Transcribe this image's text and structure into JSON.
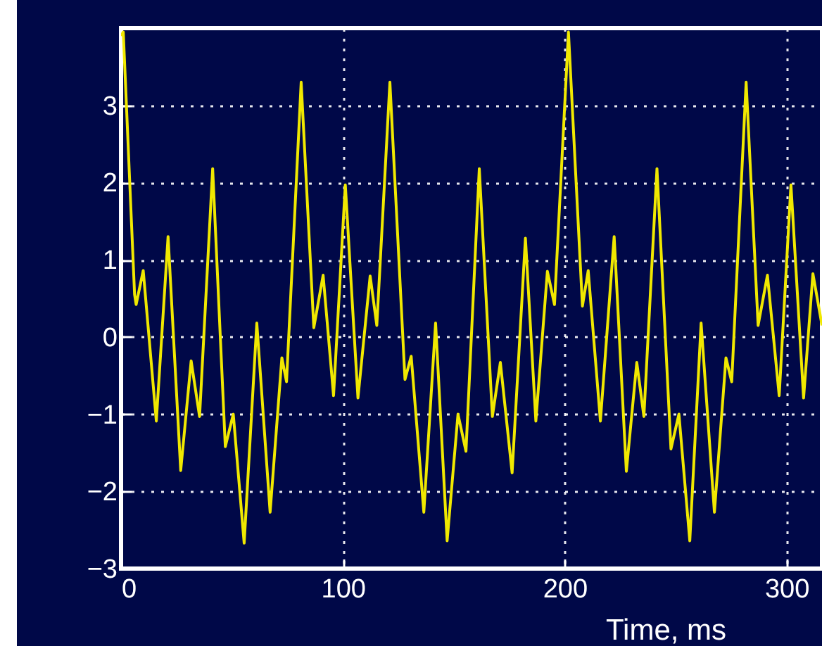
{
  "chart_data": {
    "type": "line",
    "xlabel": "Time, ms",
    "x": [
      0,
      1.0,
      6.1,
      6.8,
      10,
      15.9,
      21.2,
      26.9,
      31.6,
      35.4,
      41.3,
      47,
      50.6,
      55.5,
      61.2,
      67.2,
      72.5,
      74.6,
      81.2,
      86.9,
      91.1,
      95.8,
      101.1,
      106.8,
      112.3,
      115.3,
      121.2,
      128,
      130.8,
      136.5,
      141.8,
      147,
      151.9,
      155.5,
      161.5,
      167.4,
      171,
      176.3,
      182.3,
      187,
      192.2,
      195.4,
      201.7,
      208,
      210.6,
      216.1,
      222.3,
      227.8,
      232.5,
      235.7,
      241.6,
      247.9,
      251.5,
      256.4,
      261.5,
      267.5,
      272.7,
      275.3,
      281.8,
      287.2,
      291.4,
      296.7,
      302,
      307.7,
      311.9,
      316
    ],
    "series": [
      {
        "color": "#f0e800",
        "values": [
          3.9,
          3.95,
          0.55,
          0.42,
          0.86,
          -1.09,
          1.3,
          -1.73,
          -0.31,
          -1.03,
          2.18,
          -1.42,
          -1.0,
          -2.67,
          0.18,
          -2.27,
          -0.27,
          -0.58,
          3.3,
          0.12,
          0.8,
          -0.76,
          1.97,
          -0.79,
          0.79,
          0.15,
          3.3,
          -0.55,
          -0.25,
          -2.27,
          0.18,
          -2.64,
          -1.0,
          -1.48,
          2.18,
          -1.03,
          -0.33,
          -1.76,
          1.28,
          -1.09,
          0.85,
          0.42,
          3.95,
          0.4,
          0.86,
          -1.09,
          1.3,
          -1.74,
          -0.33,
          -1.03,
          2.18,
          -1.45,
          -1.0,
          -2.64,
          0.18,
          -2.27,
          -0.27,
          -0.58,
          3.3,
          0.15,
          0.8,
          -0.76,
          1.97,
          -0.79,
          0.82,
          0.15
        ]
      }
    ],
    "xlim": [
      0,
      316
    ],
    "ylim": [
      -3,
      4
    ],
    "xticks": [
      0,
      100,
      200,
      300
    ],
    "yticks": [
      -3,
      -2,
      -1,
      0,
      1,
      2,
      3
    ],
    "grid": true,
    "line_style": "solid"
  }
}
